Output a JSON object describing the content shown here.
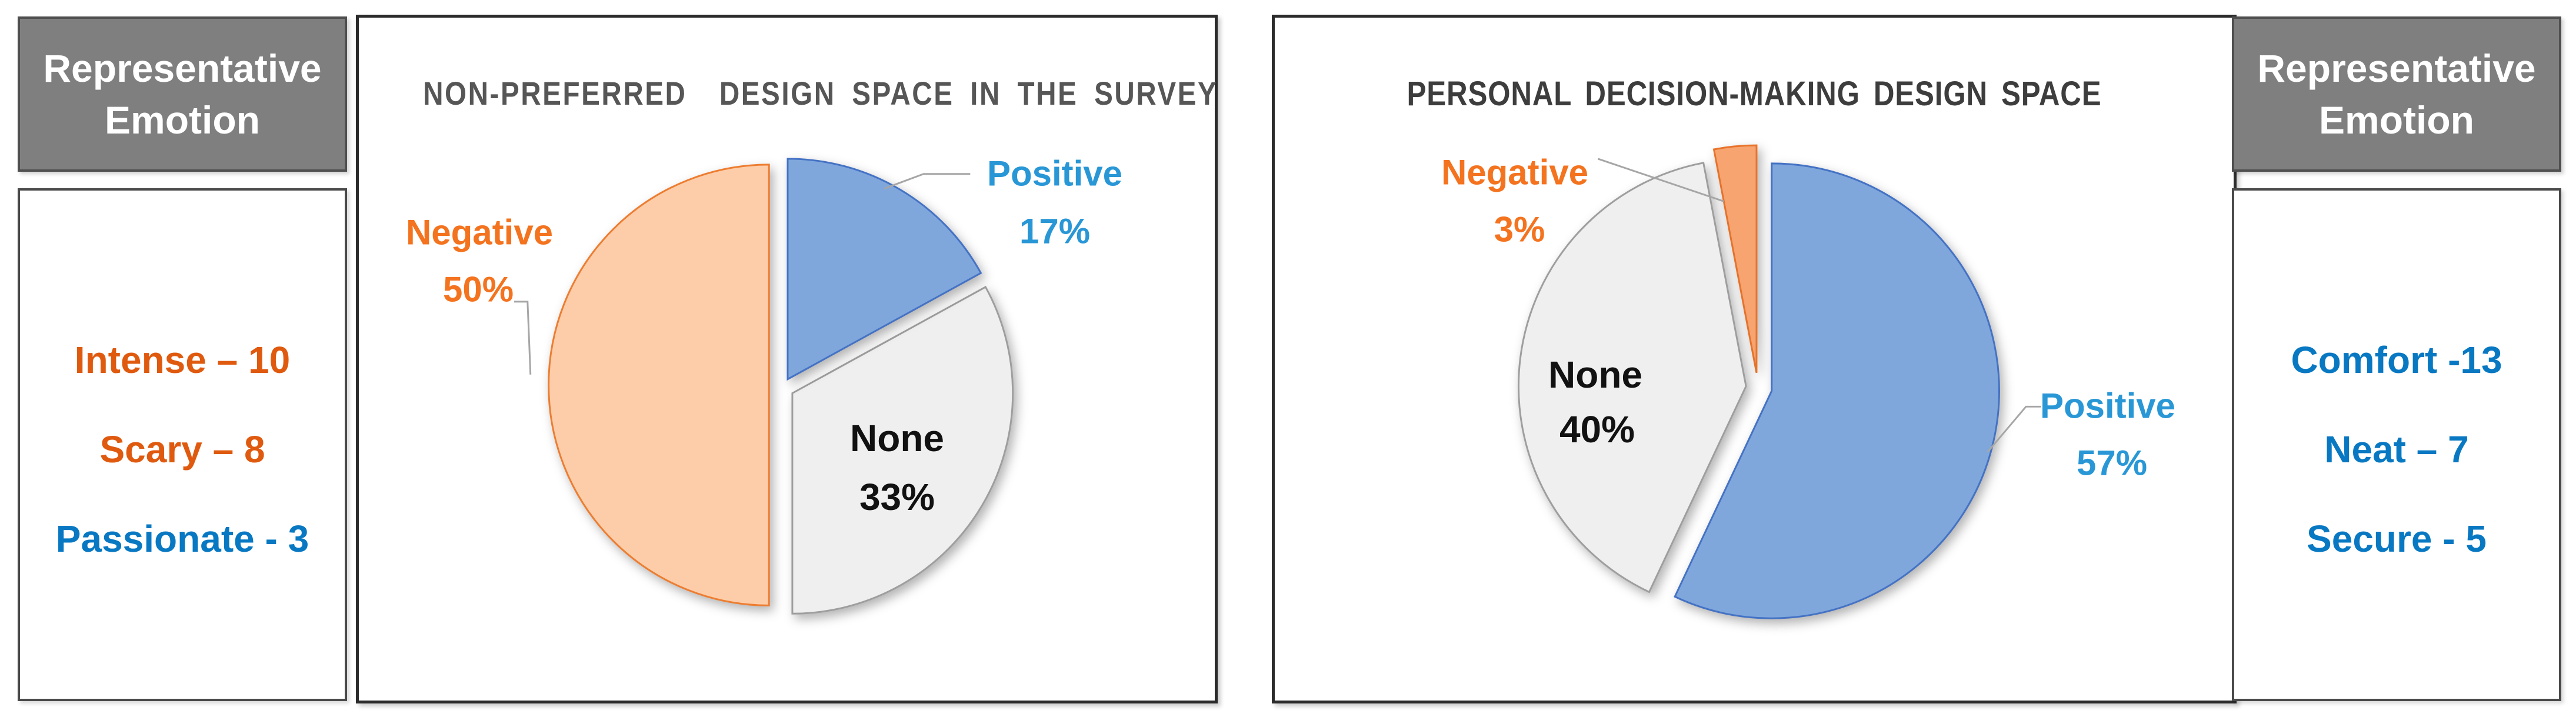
{
  "left_emotions": {
    "header": "Representative\nEmotion",
    "items": [
      {
        "label": "Intense – 10",
        "color": "#DF5A0F"
      },
      {
        "label": "Scary – 8",
        "color": "#DF5A0F"
      },
      {
        "label": "Passionate - 3",
        "color": "#0878C2"
      }
    ]
  },
  "right_emotions": {
    "header": "Representative\nEmotion",
    "items": [
      {
        "label": "Comfort -13",
        "color": "#0878C2"
      },
      {
        "label": "Neat – 7",
        "color": "#0878C2"
      },
      {
        "label": "Secure - 5",
        "color": "#0878C2"
      }
    ]
  },
  "chart_data": [
    {
      "type": "pie",
      "title": "NON-PREFERRED  DESIGN SPACE IN THE SURVEY",
      "units": "%",
      "start_angle_deg": 0,
      "direction": "clockwise",
      "legend": "none",
      "slices": [
        {
          "label": "Positive",
          "value": 17,
          "pct_label": "17%",
          "fill": "#7FA7DC",
          "stroke": "#4472C4",
          "label_color": "#2997D6",
          "explode": [
            14,
            -10
          ],
          "label_placement": "outside-top-right"
        },
        {
          "label": "None",
          "value": 33,
          "pct_label": "33%",
          "fill": "#EFEFEF",
          "stroke": "#9E9E9E",
          "label_color": "#111111",
          "explode": [
            22,
            14
          ],
          "label_placement": "inside"
        },
        {
          "label": "Negative",
          "value": 50,
          "pct_label": "50%",
          "fill": "#FDCDA9",
          "stroke": "#ED7D31",
          "label_color": "#F4731F",
          "explode": [
            -18,
            0
          ],
          "label_placement": "outside-left"
        }
      ]
    },
    {
      "type": "pie",
      "title": "PERSONAL DECISION-MAKING DESIGN SPACE",
      "units": "%",
      "start_angle_deg": 0,
      "direction": "clockwise",
      "legend": "none",
      "slices": [
        {
          "label": "Positive",
          "value": 57,
          "pct_label": "57%",
          "fill": "#7FA7DC",
          "stroke": "#4472C4",
          "label_color": "#2997D6",
          "explode": [
            22,
            5
          ],
          "label_placement": "outside-right"
        },
        {
          "label": "None",
          "value": 40,
          "pct_label": "40%",
          "fill": "#EFEFEF",
          "stroke": "#9E9E9E",
          "label_color": "#111111",
          "explode": [
            -22,
            -3
          ],
          "label_placement": "inside"
        },
        {
          "label": "Negative",
          "value": 3,
          "pct_label": "3%",
          "fill": "#F7A471",
          "stroke": "#E8732A",
          "label_color": "#F4731F",
          "explode": [
            -4,
            -26
          ],
          "label_placement": "outside-top-left"
        }
      ]
    }
  ]
}
